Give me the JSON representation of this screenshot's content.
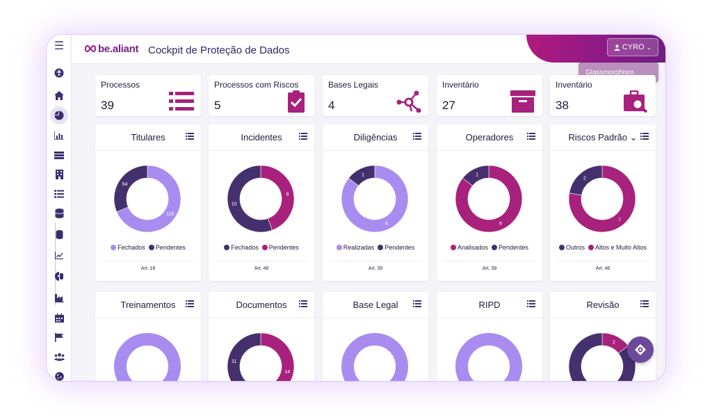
{
  "app": {
    "logo_text": "be.aliant",
    "page_title": "Cockpit de Proteção de Dados"
  },
  "user": {
    "name": "CYRO",
    "menu_item": "Glassmorphism"
  },
  "colors": {
    "light_purple": "#a98cf0",
    "magenta": "#a7217d",
    "dark_purple": "#45306e"
  },
  "sidebar_icons": [
    "menu-icon",
    "accessibility-icon",
    "home-icon",
    "pie-chart-icon",
    "bar-chart-icon",
    "list-icon",
    "building-icon",
    "bullet-list-icon",
    "database-icon",
    "database-icon",
    "line-chart-icon",
    "chart-icon",
    "industry-icon",
    "calendar-icon",
    "flag-icon",
    "users-icon",
    "cookie-icon"
  ],
  "stats": [
    {
      "label": "Processos",
      "value": "39",
      "icon": "list-icon"
    },
    {
      "label": "Processos com Riscos",
      "value": "5",
      "icon": "clipboard-check-icon"
    },
    {
      "label": "Bases Legais",
      "value": "4",
      "icon": "network-icon"
    },
    {
      "label": "Inventário",
      "value": "27",
      "icon": "archive-icon"
    },
    {
      "label": "Inventário",
      "value": "38",
      "icon": "briefcase-search-icon"
    }
  ],
  "cards_row1": [
    {
      "title": "Titulares",
      "article": "Art. 18",
      "legend": [
        "Fechados",
        "Pendentes"
      ],
      "chart_data": {
        "type": "pie",
        "slices": [
          {
            "name": "Fechados",
            "value": 118,
            "color": "#a98cf0"
          },
          {
            "name": "Pendentes",
            "value": 54,
            "color": "#45306e"
          }
        ]
      },
      "labels": [
        "118",
        "54"
      ]
    },
    {
      "title": "Incidentes",
      "article": "Art. 48",
      "legend": [
        "Fechados",
        "Pendentes"
      ],
      "chart_data": {
        "type": "pie",
        "slices": [
          {
            "name": "Pendentes",
            "value": 8,
            "color": "#a7217d"
          },
          {
            "name": "Fechados",
            "value": 10,
            "color": "#45306e"
          }
        ]
      },
      "labels": [
        "8",
        "10"
      ]
    },
    {
      "title": "Diligências",
      "article": "Art. 39",
      "legend": [
        "Realizadas",
        "Pendentes"
      ],
      "chart_data": {
        "type": "pie",
        "slices": [
          {
            "name": "Realizadas",
            "value": 6,
            "color": "#a98cf0"
          },
          {
            "name": "Pendentes",
            "value": 1,
            "color": "#45306e"
          }
        ]
      },
      "labels": [
        "6",
        "1"
      ]
    },
    {
      "title": "Operadores",
      "article": "Art. 39",
      "legend": [
        "Analisados",
        "Pendentes"
      ],
      "chart_data": {
        "type": "pie",
        "slices": [
          {
            "name": "Analisados",
            "value": 6,
            "color": "#a7217d"
          },
          {
            "name": "Pendentes",
            "value": 1,
            "color": "#45306e"
          }
        ]
      },
      "labels": [
        "6",
        "1"
      ]
    },
    {
      "title": "Riscos Padrão ⌄",
      "article": "Art. 46",
      "legend": [
        "Outros",
        "Altos e Muito Altos"
      ],
      "chart_data": {
        "type": "pie",
        "slices": [
          {
            "name": "Altos e Muito Altos",
            "value": 7,
            "color": "#a7217d"
          },
          {
            "name": "Outros",
            "value": 2,
            "color": "#45306e"
          }
        ]
      },
      "labels": [
        "7",
        "2"
      ]
    }
  ],
  "cards_row2": [
    {
      "title": "Treinamentos",
      "chart_data": {
        "type": "pie",
        "slices": [
          {
            "value": 1,
            "color": "#a98cf0"
          }
        ]
      },
      "labels": []
    },
    {
      "title": "Documentos",
      "chart_data": {
        "type": "pie",
        "slices": [
          {
            "value": 14,
            "color": "#a7217d"
          },
          {
            "value": 11,
            "color": "#45306e"
          }
        ]
      },
      "labels": [
        "14",
        "11"
      ]
    },
    {
      "title": "Base Legal",
      "chart_data": {
        "type": "pie",
        "slices": [
          {
            "value": 1,
            "color": "#a98cf0"
          }
        ]
      },
      "labels": []
    },
    {
      "title": "RIPD",
      "chart_data": {
        "type": "pie",
        "slices": [
          {
            "value": 1,
            "color": "#a98cf0"
          }
        ]
      },
      "labels": []
    },
    {
      "title": "Revisão",
      "chart_data": {
        "type": "pie",
        "slices": [
          {
            "value": 2,
            "color": "#a7217d"
          },
          {
            "value": 12,
            "color": "#45306e"
          }
        ]
      },
      "labels": [
        "2"
      ]
    }
  ]
}
